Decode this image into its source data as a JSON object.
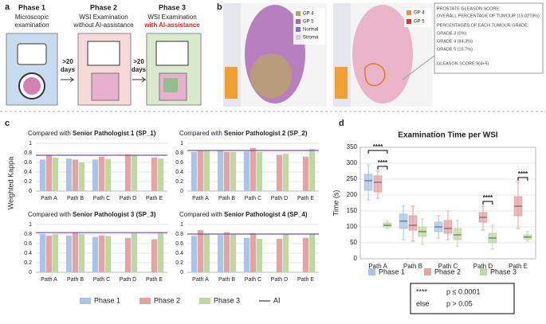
{
  "panel_labels": [
    "a",
    "b",
    "c",
    "d"
  ],
  "panel_a": {
    "phases": [
      {
        "title": "Phase 1",
        "text": [
          "Microscopic",
          "examination"
        ]
      },
      {
        "title": "Phase 2",
        "text": [
          "WSI Examination",
          "without AI-assistance"
        ]
      },
      {
        "title": "Phase 3",
        "text": [
          "WSI Examination"
        ],
        "highlight": "with AI-assistance"
      }
    ],
    "gaps": [
      ">20",
      "days"
    ]
  },
  "panel_b": {
    "legend_left": [
      "GP 4",
      "GP 5",
      "Normal",
      "Stroma"
    ],
    "legend_right": [
      "GP 4",
      "GP 5"
    ],
    "report": [
      "PROSTATE GLEASON SCORE:",
      "OVERALL PERCENTAGE OF TUMOUR (15.0279%)",
      "PERCENTAGES OF EACH TUMOUR GRADE:",
      "GRADE 3 (0%)",
      "GRADE 4 (84.3%)",
      "GRADE 5 (15.7%)",
      "GLEASON SCORE:9(4+5)"
    ]
  },
  "chart_data": [
    {
      "type": "bar",
      "title": "Compared with",
      "title_emphasis": "Senior Pathologist 1 (SP_1)",
      "y_label": "Weighted Kappa",
      "categories": [
        "Path A",
        "Path B",
        "Path C",
        "Path D",
        "Path E"
      ],
      "ylim": [
        0,
        1
      ],
      "yticks": [
        0,
        0.2,
        0.4,
        0.6,
        0.8,
        1
      ],
      "series": [
        {
          "name": "Phase 1",
          "color": "#a8c4e6",
          "values": [
            0.66,
            0.68,
            0.66,
            null,
            null
          ]
        },
        {
          "name": "Phase 2",
          "color": "#e6a3a3",
          "values": [
            0.75,
            0.66,
            0.72,
            0.77,
            0.7
          ]
        },
        {
          "name": "Phase 3",
          "color": "#bcd9a2",
          "values": [
            0.7,
            0.6,
            0.67,
            0.75,
            0.68
          ]
        },
        {
          "name": "AI",
          "color": "#6f55a0",
          "type": "line",
          "values": [
            0.75,
            0.75,
            0.75,
            0.75,
            0.75
          ]
        }
      ]
    },
    {
      "type": "bar",
      "title": "Compared with",
      "title_emphasis": "Senior Pathologist 2 (SP_2)",
      "categories": [
        "Path A",
        "Path B",
        "Path C",
        "Path D",
        "Path E"
      ],
      "ylim": [
        0,
        1
      ],
      "yticks": [
        0,
        0.2,
        0.4,
        0.6,
        0.8,
        1
      ],
      "series": [
        {
          "name": "Phase 1",
          "color": "#a8c4e6",
          "values": [
            0.82,
            0.84,
            0.83,
            null,
            null
          ]
        },
        {
          "name": "Phase 2",
          "color": "#e6a3a3",
          "values": [
            0.84,
            0.82,
            0.9,
            0.76,
            0.72
          ]
        },
        {
          "name": "Phase 3",
          "color": "#bcd9a2",
          "values": [
            0.84,
            0.82,
            0.82,
            0.78,
            0.88
          ]
        },
        {
          "name": "AI",
          "color": "#6f55a0",
          "type": "line",
          "values": [
            0.85,
            0.85,
            0.85,
            0.85,
            0.85
          ]
        }
      ]
    },
    {
      "type": "bar",
      "title": "Compared with",
      "title_emphasis": "Senior Pathologist 3 (SP_3)",
      "categories": [
        "Path A",
        "Path B",
        "Path C",
        "Path D",
        "Path E"
      ],
      "ylim": [
        0,
        1
      ],
      "yticks": [
        0,
        0.2,
        0.4,
        0.6,
        0.8,
        1
      ],
      "series": [
        {
          "name": "Phase 1",
          "color": "#a8c4e6",
          "values": [
            0.8,
            0.77,
            0.74,
            null,
            null
          ]
        },
        {
          "name": "Phase 2",
          "color": "#e6a3a3",
          "values": [
            0.77,
            0.84,
            0.77,
            0.72,
            0.69
          ]
        },
        {
          "name": "Phase 3",
          "color": "#bcd9a2",
          "values": [
            0.8,
            0.8,
            0.76,
            0.82,
            0.84
          ]
        },
        {
          "name": "AI",
          "color": "#6f55a0",
          "type": "line",
          "values": [
            0.83,
            0.83,
            0.83,
            0.83,
            0.83
          ]
        }
      ]
    },
    {
      "type": "bar",
      "title": "Compared  with",
      "title_emphasis": "Senior Pathologist 4 (SP_4)",
      "categories": [
        "Path A",
        "Path B",
        "Path C",
        "Path D",
        "Path E"
      ],
      "ylim": [
        0,
        1
      ],
      "yticks": [
        0,
        0.2,
        0.4,
        0.6,
        0.8,
        1
      ],
      "series": [
        {
          "name": "Phase 1",
          "color": "#a8c4e6",
          "values": [
            0.76,
            0.78,
            0.72,
            null,
            null
          ]
        },
        {
          "name": "Phase 2",
          "color": "#e6a3a3",
          "values": [
            0.88,
            0.84,
            0.82,
            0.7,
            0.72
          ]
        },
        {
          "name": "Phase 3",
          "color": "#bcd9a2",
          "values": [
            0.8,
            0.8,
            0.7,
            0.8,
            0.8
          ]
        },
        {
          "name": "AI",
          "color": "#6f55a0",
          "type": "line",
          "values": [
            0.8,
            0.8,
            0.8,
            0.8,
            0.8
          ]
        }
      ]
    },
    {
      "type": "box",
      "title": "Examination Time per WSI",
      "y_label": "Time (s)",
      "categories": [
        "Path A",
        "Path B",
        "Path C",
        "Path D",
        "Path E"
      ],
      "ylim": [
        0,
        350
      ],
      "yticks": [
        0,
        50,
        100,
        150,
        200,
        250,
        300,
        350
      ],
      "series": [
        {
          "name": "Phase 1",
          "color": "#a8c4e6",
          "values": [
            {
              "min": 185,
              "q1": 215,
              "median": 245,
              "q3": 265,
              "max": 295
            },
            {
              "min": 60,
              "q1": 95,
              "median": 118,
              "q3": 140,
              "max": 165
            },
            {
              "min": 65,
              "q1": 85,
              "median": 100,
              "q3": 115,
              "max": 135
            },
            null,
            null
          ]
        },
        {
          "name": "Phase 2",
          "color": "#e6a3a3",
          "values": [
            {
              "min": 190,
              "q1": 210,
              "median": 240,
              "q3": 260,
              "max": 275
            },
            {
              "min": 55,
              "q1": 90,
              "median": 105,
              "q3": 135,
              "max": 165
            },
            {
              "min": 60,
              "q1": 80,
              "median": 95,
              "q3": 120,
              "max": 150
            },
            {
              "min": 90,
              "q1": 115,
              "median": 130,
              "q3": 145,
              "max": 165
            },
            {
              "min": 95,
              "q1": 135,
              "median": 165,
              "q3": 195,
              "max": 240
            }
          ]
        },
        {
          "name": "Phase 3",
          "color": "#bcd9a2",
          "values": [
            {
              "min": 95,
              "q1": 100,
              "median": 105,
              "q3": 112,
              "max": 118
            },
            {
              "min": 45,
              "q1": 70,
              "median": 85,
              "q3": 100,
              "max": 125
            },
            {
              "min": 40,
              "q1": 60,
              "median": 75,
              "q3": 95,
              "max": 120
            },
            {
              "min": 30,
              "q1": 50,
              "median": 65,
              "q3": 80,
              "max": 105
            },
            {
              "min": 55,
              "q1": 62,
              "median": 68,
              "q3": 75,
              "max": 85
            }
          ]
        }
      ],
      "annotations": [
        {
          "text": "****",
          "category": "Path A",
          "pair": [
            "Phase 1",
            "Phase 3"
          ]
        },
        {
          "text": "****",
          "category": "Path A",
          "pair": [
            "Phase 2",
            "Phase 3"
          ]
        },
        {
          "text": "****",
          "category": "Path D",
          "pair": [
            "Phase 2",
            "Phase 3"
          ]
        },
        {
          "text": "****",
          "category": "Path E",
          "pair": [
            "Phase 2",
            "Phase 3"
          ]
        }
      ],
      "significance_key": [
        [
          "****",
          "p ≤ 0.0001"
        ],
        [
          "else",
          "p > 0.05"
        ]
      ]
    }
  ]
}
